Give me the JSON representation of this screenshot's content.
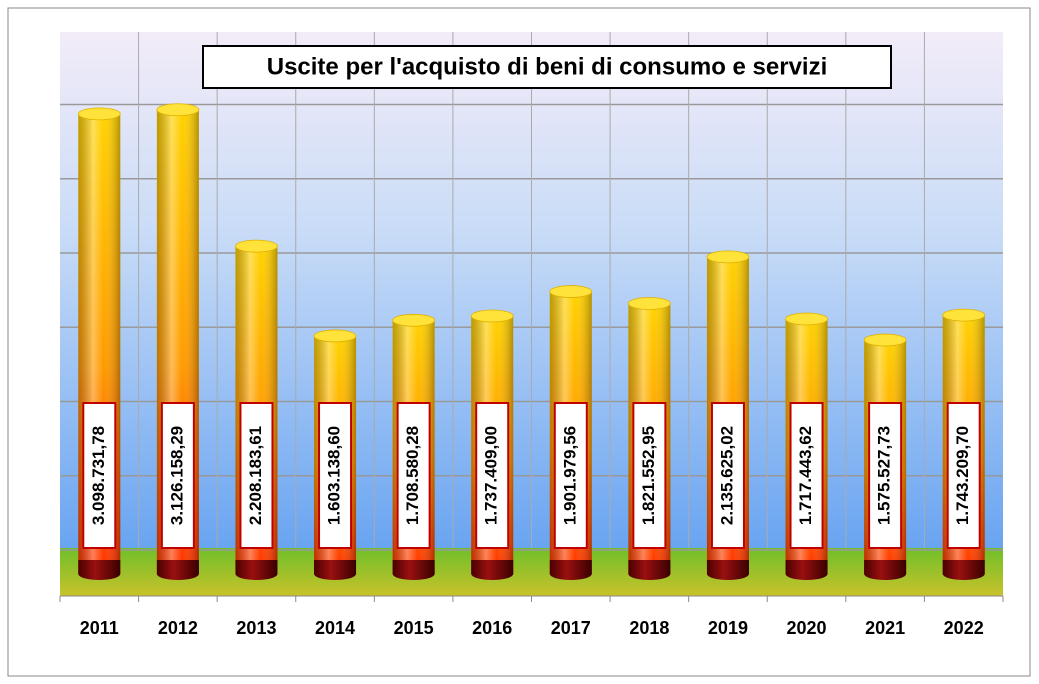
{
  "chart_data": {
    "type": "bar",
    "title": "Uscite per l'acquisto di beni di consumo e servizi",
    "categories": [
      "2011",
      "2012",
      "2013",
      "2014",
      "2015",
      "2016",
      "2017",
      "2018",
      "2019",
      "2020",
      "2021",
      "2022"
    ],
    "values": [
      3098731.78,
      3126158.29,
      2208183.61,
      1603138.6,
      1708580.28,
      1737409.0,
      1901979.56,
      1821552.95,
      2135625.02,
      1717443.62,
      1575527.73,
      1743209.7
    ],
    "value_labels": [
      "3.098.731,78",
      "3.126.158,29",
      "2.208.183,61",
      "1.603.138,60",
      "1.708.580,28",
      "1.737.409,00",
      "1.901.979,56",
      "1.821.552,95",
      "2.135.625,02",
      "1.717.443,62",
      "1.575.527,73",
      "1.743.209,70"
    ],
    "color": "#ffd200",
    "ylim": [
      0,
      3650000
    ],
    "yticks": [
      0,
      500000,
      1000000,
      1500000,
      2000000,
      2500000,
      3000000,
      3500000
    ],
    "grid": true
  }
}
